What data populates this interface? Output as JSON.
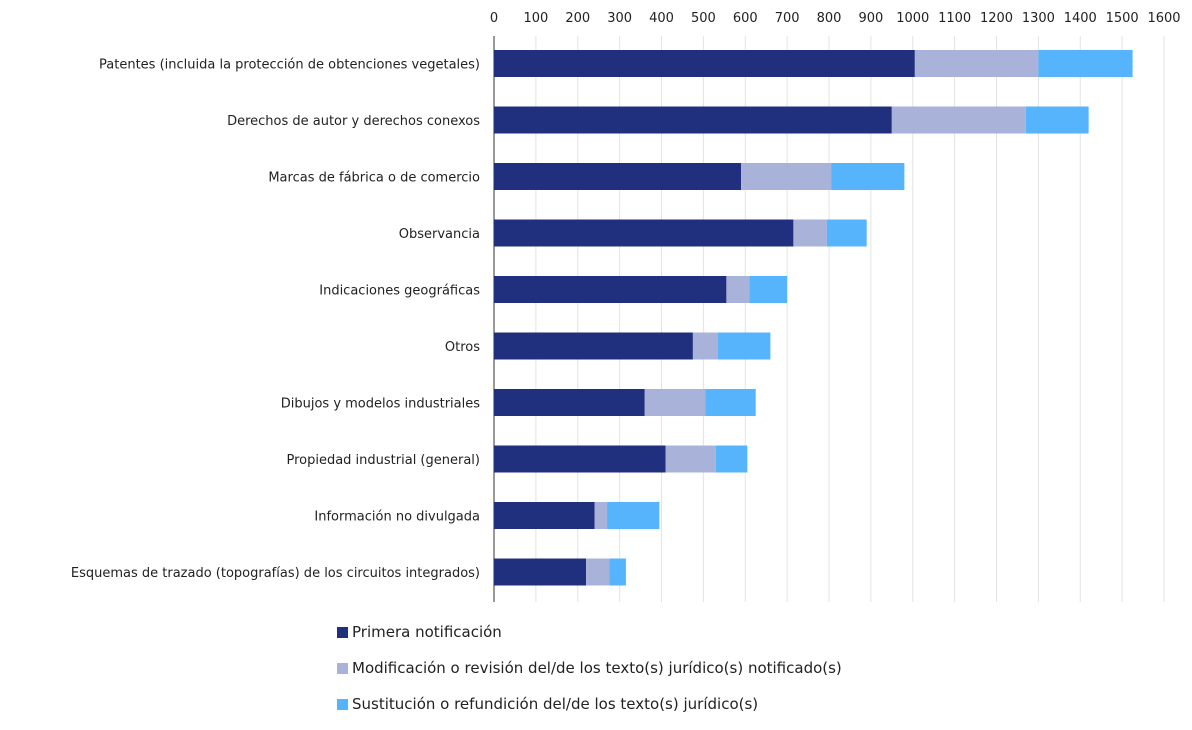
{
  "chart_data": {
    "type": "bar",
    "orientation": "horizontal",
    "stacked": true,
    "categories": [
      "Patentes (incluida la protección de obtenciones vegetales)",
      "Derechos de autor y derechos conexos",
      "Marcas de fábrica o de comercio",
      "Observancia",
      "Indicaciones geográficas",
      "Otros",
      "Dibujos y modelos industriales",
      "Propiedad industrial (general)",
      "Información no divulgada",
      "Esquemas de trazado (topografías) de los circuitos integrados)"
    ],
    "series": [
      {
        "name": "Primera notificación",
        "color": "#20307e",
        "values": [
          1005,
          950,
          590,
          715,
          555,
          475,
          360,
          410,
          240,
          220
        ]
      },
      {
        "name": "Modificación o revisión del/de los texto(s) jurídico(s) notificado(s)",
        "color": "#a9b3d9",
        "values": [
          295,
          320,
          215,
          80,
          55,
          60,
          145,
          120,
          30,
          55
        ]
      },
      {
        "name": "Sustitución o refundición del/de los texto(s) jurídico(s)",
        "color": "#56b4fc",
        "values": [
          225,
          150,
          175,
          95,
          90,
          125,
          120,
          75,
          125,
          40
        ]
      }
    ],
    "xlim": [
      0,
      1600
    ],
    "xticks": [
      "0",
      "100",
      "200",
      "300",
      "400",
      "500",
      "600",
      "700",
      "800",
      "900",
      "1000",
      "1100",
      "1200",
      "1300",
      "1400",
      "1500",
      "1600"
    ],
    "axis_position": "top",
    "grid": true,
    "legend_position": "bottom"
  }
}
